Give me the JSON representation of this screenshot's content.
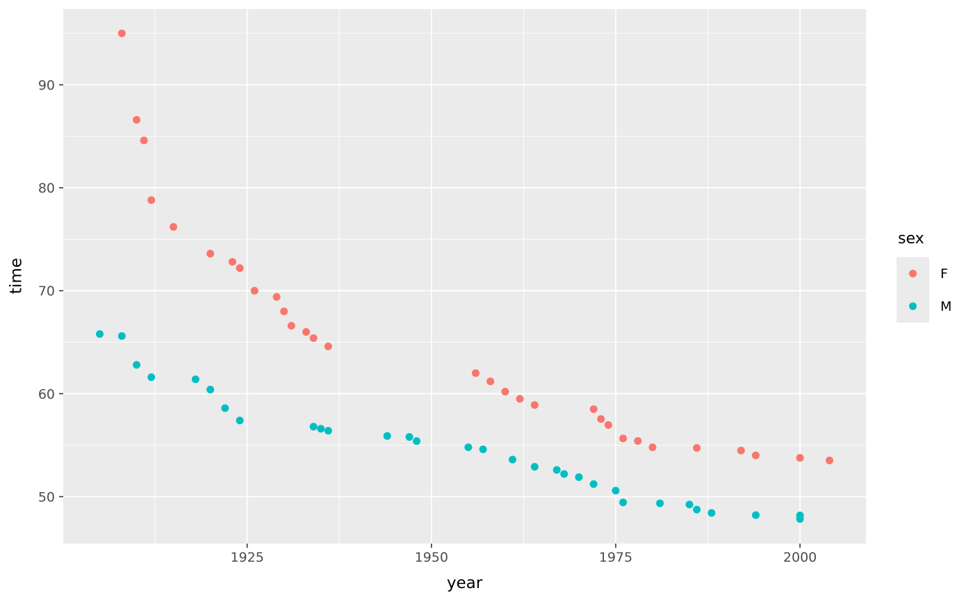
{
  "figure": {
    "background": "#FFFFFF"
  },
  "chart_data": {
    "type": "scatter",
    "title": "",
    "xlabel": "year",
    "ylabel": "time",
    "legend_title": "sex",
    "legend_position": "right",
    "grid": true,
    "panel_background": "#EBEBEB",
    "gridline_color": "#FFFFFF",
    "tick_color": "#333333",
    "tick_label_color": "#4D4D4D",
    "xlim": [
      1900.05,
      2008.95
    ],
    "ylim": [
      45.44,
      97.36
    ],
    "x_major_ticks": [
      1925,
      1950,
      1975,
      2000
    ],
    "x_tick_labels": [
      "1925",
      "1950",
      "1975",
      "2000"
    ],
    "x_minor_gridlines": [
      1912.5,
      1937.5,
      1962.5,
      1987.5
    ],
    "y_major_ticks": [
      50,
      60,
      70,
      80,
      90
    ],
    "y_tick_labels": [
      "50",
      "60",
      "70",
      "80",
      "90"
    ],
    "y_minor_gridlines": [
      55,
      65,
      75,
      85,
      95
    ],
    "point_radius": 5.5,
    "series": [
      {
        "name": "F",
        "color": "#F8766D",
        "points": [
          [
            1908,
            95.0
          ],
          [
            1910,
            86.6
          ],
          [
            1911,
            84.6
          ],
          [
            1912,
            78.8
          ],
          [
            1915,
            76.2
          ],
          [
            1920,
            73.6
          ],
          [
            1923,
            72.8
          ],
          [
            1924,
            72.2
          ],
          [
            1926,
            70.0
          ],
          [
            1929,
            69.4
          ],
          [
            1930,
            68.0
          ],
          [
            1931,
            66.6
          ],
          [
            1933,
            66.0
          ],
          [
            1934,
            65.4
          ],
          [
            1936,
            64.6
          ],
          [
            1956,
            62.0
          ],
          [
            1958,
            61.2
          ],
          [
            1960,
            60.2
          ],
          [
            1962,
            59.5
          ],
          [
            1964,
            58.9
          ],
          [
            1972,
            58.5
          ],
          [
            1973,
            57.54
          ],
          [
            1974,
            56.96
          ],
          [
            1976,
            55.65
          ],
          [
            1978,
            55.41
          ],
          [
            1980,
            54.79
          ],
          [
            1986,
            54.73
          ],
          [
            1992,
            54.48
          ],
          [
            1994,
            54.01
          ],
          [
            2000,
            53.77
          ],
          [
            2004,
            53.52
          ]
        ]
      },
      {
        "name": "M",
        "color": "#00BFC4",
        "points": [
          [
            1905,
            65.8
          ],
          [
            1908,
            65.6
          ],
          [
            1910,
            62.8
          ],
          [
            1912,
            61.6
          ],
          [
            1918,
            61.4
          ],
          [
            1920,
            60.4
          ],
          [
            1922,
            58.6
          ],
          [
            1924,
            57.4
          ],
          [
            1934,
            56.8
          ],
          [
            1935,
            56.6
          ],
          [
            1936,
            56.4
          ],
          [
            1944,
            55.9
          ],
          [
            1947,
            55.8
          ],
          [
            1948,
            55.4
          ],
          [
            1955,
            54.8
          ],
          [
            1957,
            54.6
          ],
          [
            1961,
            53.6
          ],
          [
            1964,
            52.9
          ],
          [
            1967,
            52.6
          ],
          [
            1968,
            52.2
          ],
          [
            1970,
            51.9
          ],
          [
            1972,
            51.22
          ],
          [
            1975,
            50.59
          ],
          [
            1976,
            49.44
          ],
          [
            1981,
            49.36
          ],
          [
            1985,
            49.24
          ],
          [
            1986,
            48.74
          ],
          [
            1988,
            48.42
          ],
          [
            1994,
            48.21
          ],
          [
            2000,
            48.18
          ],
          [
            2000,
            47.84
          ]
        ]
      }
    ]
  }
}
